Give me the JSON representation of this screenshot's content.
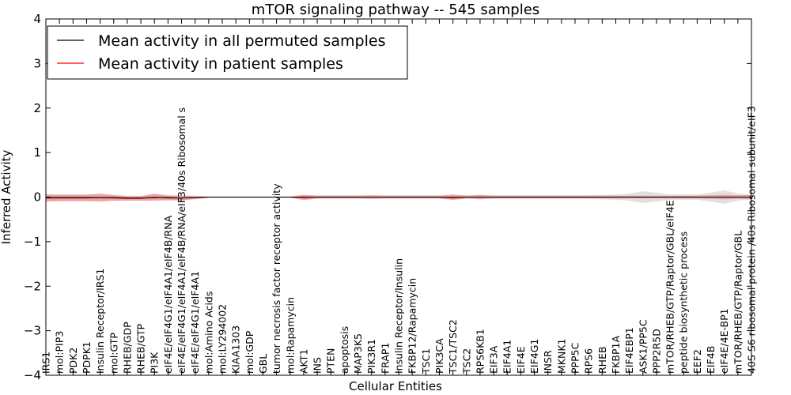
{
  "chart_data": {
    "type": "line",
    "title": "mTOR signaling pathway -- 545 samples",
    "xlabel": "Cellular Entities",
    "ylabel": "Inferred Activity",
    "ylim": [
      -4,
      4
    ],
    "y_ticks": [
      -4,
      -3,
      -2,
      -1,
      0,
      1,
      2,
      3,
      4
    ],
    "y_tick_labels": [
      "−4",
      "−3",
      "−2",
      "−1",
      "0",
      "1",
      "2",
      "3",
      "4"
    ],
    "legend_position": "top-left",
    "categories": [
      "IRS1",
      "mol:PIP3",
      "PDK2",
      "PDPK1",
      "Insulin Receptor/IRS1",
      "mol:GTP",
      "RHEB/GDP",
      "RHEB/GTP",
      "PI3K",
      "eIF4E/eIF4G1/eIF4A1/eIF4B/RNA",
      "eIF4E/eIF4G1/eIF4A1/eIF4B/RNA/eIF3/40s Ribosomal s",
      "eIF4E/eIF4G1/eIF4A1",
      "mol:Amino Acids",
      "mol:LY294002",
      "KIAA1303",
      "mol:GDP",
      "GBL",
      "tumor necrosis factor receptor activity",
      "mol:Rapamycin",
      "AKT1",
      "INS",
      "PTEN",
      "apoptosis",
      "MAP3K5",
      "PIK3R1",
      "FRAP1",
      "Insulin Receptor/Insulin",
      "FKBP12/Rapamycin",
      "TSC1",
      "PIK3CA",
      "TSC1/TSC2",
      "TSC2",
      "RPS6KB1",
      "EIF3A",
      "EIF4A1",
      "EIF4E",
      "EIF4G1",
      "INSR",
      "MKNK1",
      "PPP5C",
      "RPS6",
      "RHEB",
      "FKBP1A",
      "EIF4EBP1",
      "ASK1/PP5C",
      "PPP2R5D",
      "mTOR/RHEB/GTP/Raptor/GBL/eIF4E",
      "peptide biosynthetic process",
      "EEF2",
      "EIF4B",
      "eIF4E/4E-BP1",
      "mTOR/RHEB/GTP/Raptor/GBL",
      "40S S6 ribosomal protein /40s Ribosomal subunit/eIF3"
    ],
    "series": [
      {
        "name": "Mean activity in all permuted samples",
        "color": "#000000",
        "values": [
          -0.01,
          -0.01,
          -0.01,
          -0.01,
          -0.01,
          -0.01,
          -0.02,
          -0.02,
          -0.01,
          -0.01,
          -0.02,
          -0.01,
          0.0,
          0.0,
          0.0,
          0.0,
          0.0,
          0.0,
          0.0,
          0.0,
          0.0,
          0.0,
          0.0,
          0.0,
          0.0,
          0.0,
          0.0,
          0.0,
          0.0,
          0.0,
          -0.01,
          0.0,
          0.0,
          0.0,
          0.0,
          0.0,
          0.0,
          0.0,
          0.0,
          0.0,
          0.0,
          0.0,
          0.0,
          0.0,
          0.0,
          0.0,
          0.0,
          0.0,
          0.0,
          0.0,
          0.0,
          0.0,
          0.0
        ],
        "band": [
          0.07,
          0.07,
          0.07,
          0.07,
          0.07,
          0.07,
          0.05,
          0.05,
          0.06,
          0.06,
          0.06,
          0.04,
          0.02,
          0.02,
          0.02,
          0.02,
          0.02,
          0.02,
          0.02,
          0.04,
          0.04,
          0.04,
          0.04,
          0.04,
          0.04,
          0.04,
          0.04,
          0.04,
          0.04,
          0.04,
          0.05,
          0.04,
          0.04,
          0.04,
          0.04,
          0.04,
          0.04,
          0.04,
          0.04,
          0.04,
          0.04,
          0.05,
          0.06,
          0.08,
          0.13,
          0.1,
          0.06,
          0.06,
          0.06,
          0.1,
          0.15,
          0.08,
          0.05
        ],
        "band_color": "#c8c8c8"
      },
      {
        "name": "Mean activity in patient samples",
        "color": "#ff0000",
        "values": [
          -0.02,
          -0.02,
          -0.02,
          -0.02,
          -0.01,
          -0.02,
          -0.03,
          -0.03,
          0.0,
          -0.02,
          -0.02,
          -0.01,
          0.0,
          0.0,
          0.0,
          0.0,
          0.0,
          0.0,
          0.0,
          -0.01,
          0.0,
          0.0,
          0.0,
          0.0,
          0.0,
          0.0,
          0.0,
          0.0,
          0.0,
          0.0,
          0.0,
          0.0,
          0.0,
          0.0,
          0.0,
          0.0,
          0.0,
          0.0,
          0.0,
          0.0,
          0.0,
          0.0,
          0.0,
          0.0,
          0.0,
          0.0,
          0.0,
          0.0,
          0.0,
          0.0,
          0.0,
          0.0,
          0.0
        ],
        "band": [
          0.08,
          0.07,
          0.07,
          0.07,
          0.09,
          0.06,
          0.05,
          0.05,
          0.08,
          0.05,
          0.05,
          0.03,
          0.01,
          0.01,
          0.01,
          0.01,
          0.01,
          0.01,
          0.01,
          0.06,
          0.03,
          0.03,
          0.03,
          0.03,
          0.04,
          0.03,
          0.03,
          0.03,
          0.03,
          0.03,
          0.06,
          0.03,
          0.05,
          0.03,
          0.03,
          0.03,
          0.03,
          0.03,
          0.03,
          0.03,
          0.03,
          0.03,
          0.03,
          0.03,
          0.03,
          0.03,
          0.03,
          0.03,
          0.03,
          0.04,
          0.05,
          0.04,
          0.05
        ],
        "band_color": "#f07878"
      }
    ]
  }
}
